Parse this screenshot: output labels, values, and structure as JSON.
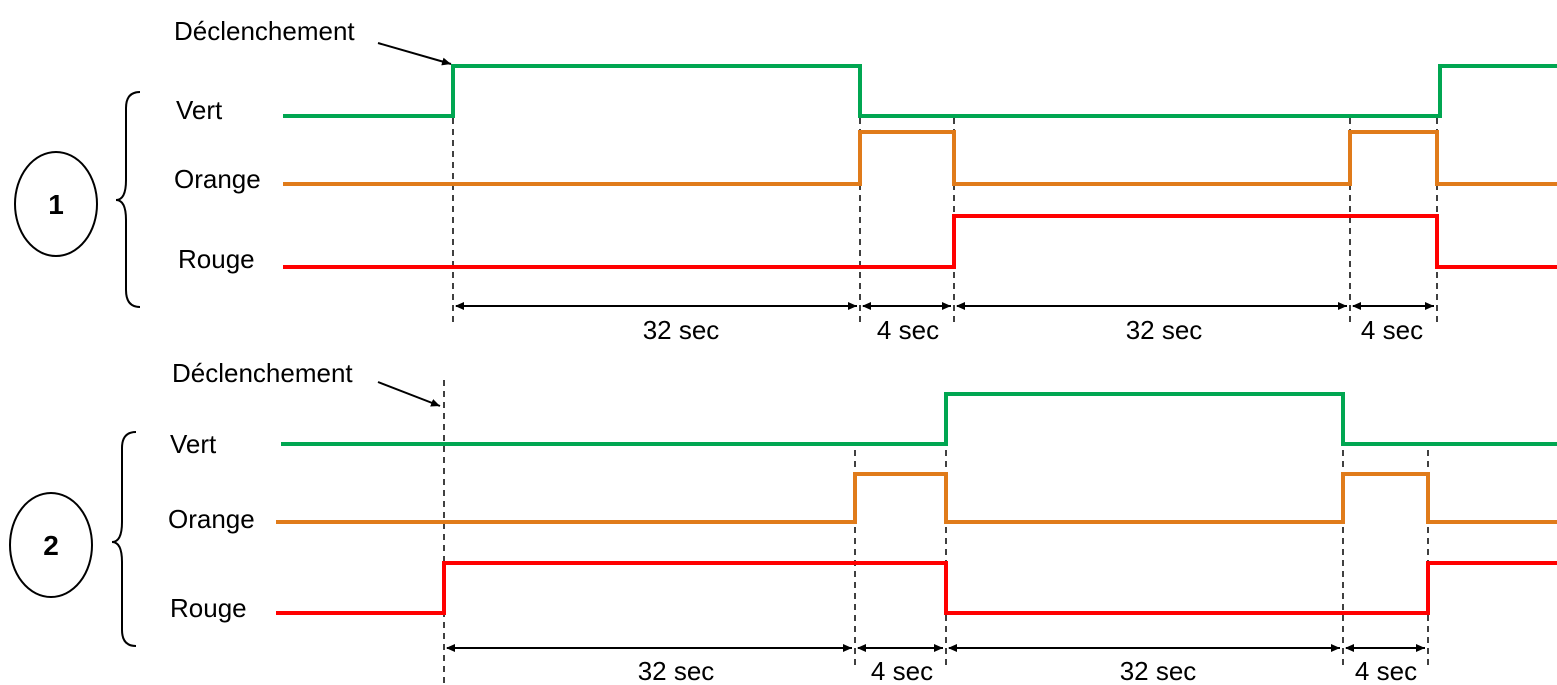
{
  "colors": {
    "vert": "#00a651",
    "orange": "#e07b1a",
    "rouge": "#ff0000",
    "guide": "#000000"
  },
  "diagram_1": {
    "number": "1",
    "trigger_label": "Déclenchement",
    "signals": {
      "vert": "Vert",
      "orange": "Orange",
      "rouge": "Rouge"
    },
    "intervals": [
      "32 sec",
      "4 sec",
      "32 sec",
      "4 sec"
    ]
  },
  "diagram_2": {
    "number": "2",
    "trigger_label": "Déclenchement",
    "signals": {
      "vert": "Vert",
      "orange": "Orange",
      "rouge": "Rouge"
    },
    "intervals": [
      "32 sec",
      "4 sec",
      "32 sec",
      "4 sec"
    ]
  }
}
